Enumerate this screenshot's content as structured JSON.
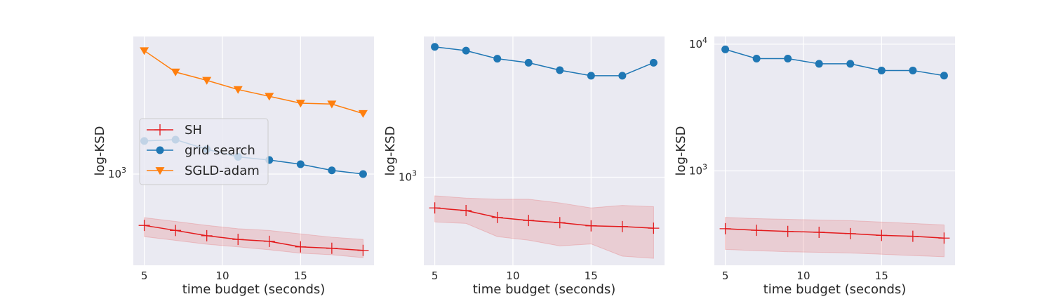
{
  "chart_data": [
    {
      "type": "line",
      "xlabel": "time budget (seconds)",
      "ylabel": "log-KSD",
      "yscale": "log",
      "xlim": [
        4.3,
        19.7
      ],
      "ylim": [
        380,
        4300
      ],
      "xticks": [
        5,
        10,
        15
      ],
      "xtick_labels": [
        "5",
        "10",
        "15"
      ],
      "yticks": [
        1000
      ],
      "ytick_labels": [
        {
          "base": "10",
          "exp": "3"
        }
      ],
      "grid": true,
      "legend": {
        "placement": "center-left"
      },
      "x": [
        5,
        7,
        9,
        11,
        13,
        15,
        17,
        19
      ],
      "series": [
        {
          "name": "SH",
          "color": "#e31a1c",
          "marker": "plus",
          "values": [
            580,
            550,
            520,
            500,
            490,
            462,
            455,
            445
          ],
          "lower": [
            515,
            495,
            475,
            462,
            448,
            432,
            425,
            412
          ],
          "upper": [
            630,
            605,
            580,
            560,
            550,
            530,
            512,
            500
          ]
        },
        {
          "name": "grid search",
          "color": "#1f77b4",
          "marker": "circle",
          "values": [
            1420,
            1440,
            1300,
            1200,
            1160,
            1110,
            1040,
            1000
          ]
        },
        {
          "name": "SGLD-adam",
          "color": "#ff7f0e",
          "marker": "triangle-down",
          "values": [
            3700,
            2950,
            2700,
            2450,
            2280,
            2120,
            2100,
            1900
          ]
        }
      ]
    },
    {
      "type": "line",
      "xlabel": "time budget (seconds)",
      "ylabel": "log-KSD",
      "yscale": "log",
      "xlim": [
        4.3,
        19.7
      ],
      "ylim": [
        390,
        4500
      ],
      "xticks": [
        5,
        10,
        15
      ],
      "xtick_labels": [
        "5",
        "10",
        "15"
      ],
      "yticks": [
        1000
      ],
      "ytick_labels": [
        {
          "base": "10",
          "exp": "3"
        }
      ],
      "grid": true,
      "x": [
        5,
        7,
        9,
        11,
        13,
        15,
        17,
        19
      ],
      "series": [
        {
          "name": "SH",
          "color": "#e31a1c",
          "marker": "plus",
          "values": [
            720,
            700,
            650,
            630,
            615,
            595,
            590,
            580
          ],
          "lower": [
            620,
            610,
            530,
            510,
            480,
            490,
            430,
            420
          ],
          "upper": [
            820,
            800,
            790,
            790,
            760,
            720,
            740,
            730
          ]
        },
        {
          "name": "grid search",
          "color": "#1f77b4",
          "marker": "circle",
          "values": [
            4030,
            3870,
            3550,
            3400,
            3140,
            2960,
            2960,
            3400
          ]
        }
      ]
    },
    {
      "type": "line",
      "xlabel": "time budget (seconds)",
      "ylabel": "log-KSD",
      "yscale": "log",
      "xlim": [
        4.3,
        19.7
      ],
      "ylim": [
        180,
        11500
      ],
      "xticks": [
        5,
        10,
        15
      ],
      "xtick_labels": [
        "5",
        "10",
        "15"
      ],
      "yticks": [
        1000,
        10000
      ],
      "ytick_labels": [
        {
          "base": "10",
          "exp": "3"
        },
        {
          "base": "10",
          "exp": "4"
        }
      ],
      "grid": true,
      "x": [
        5,
        7,
        9,
        11,
        13,
        15,
        17,
        19
      ],
      "series": [
        {
          "name": "SH",
          "color": "#e31a1c",
          "marker": "plus",
          "values": [
            350,
            340,
            333,
            328,
            320,
            310,
            305,
            295
          ],
          "lower": [
            240,
            235,
            230,
            228,
            225,
            220,
            215,
            210
          ],
          "upper": [
            430,
            420,
            415,
            410,
            405,
            395,
            385,
            375
          ]
        },
        {
          "name": "grid search",
          "color": "#1f77b4",
          "marker": "circle",
          "values": [
            9100,
            7700,
            7700,
            7000,
            7000,
            6200,
            6200,
            5650
          ]
        }
      ]
    }
  ]
}
